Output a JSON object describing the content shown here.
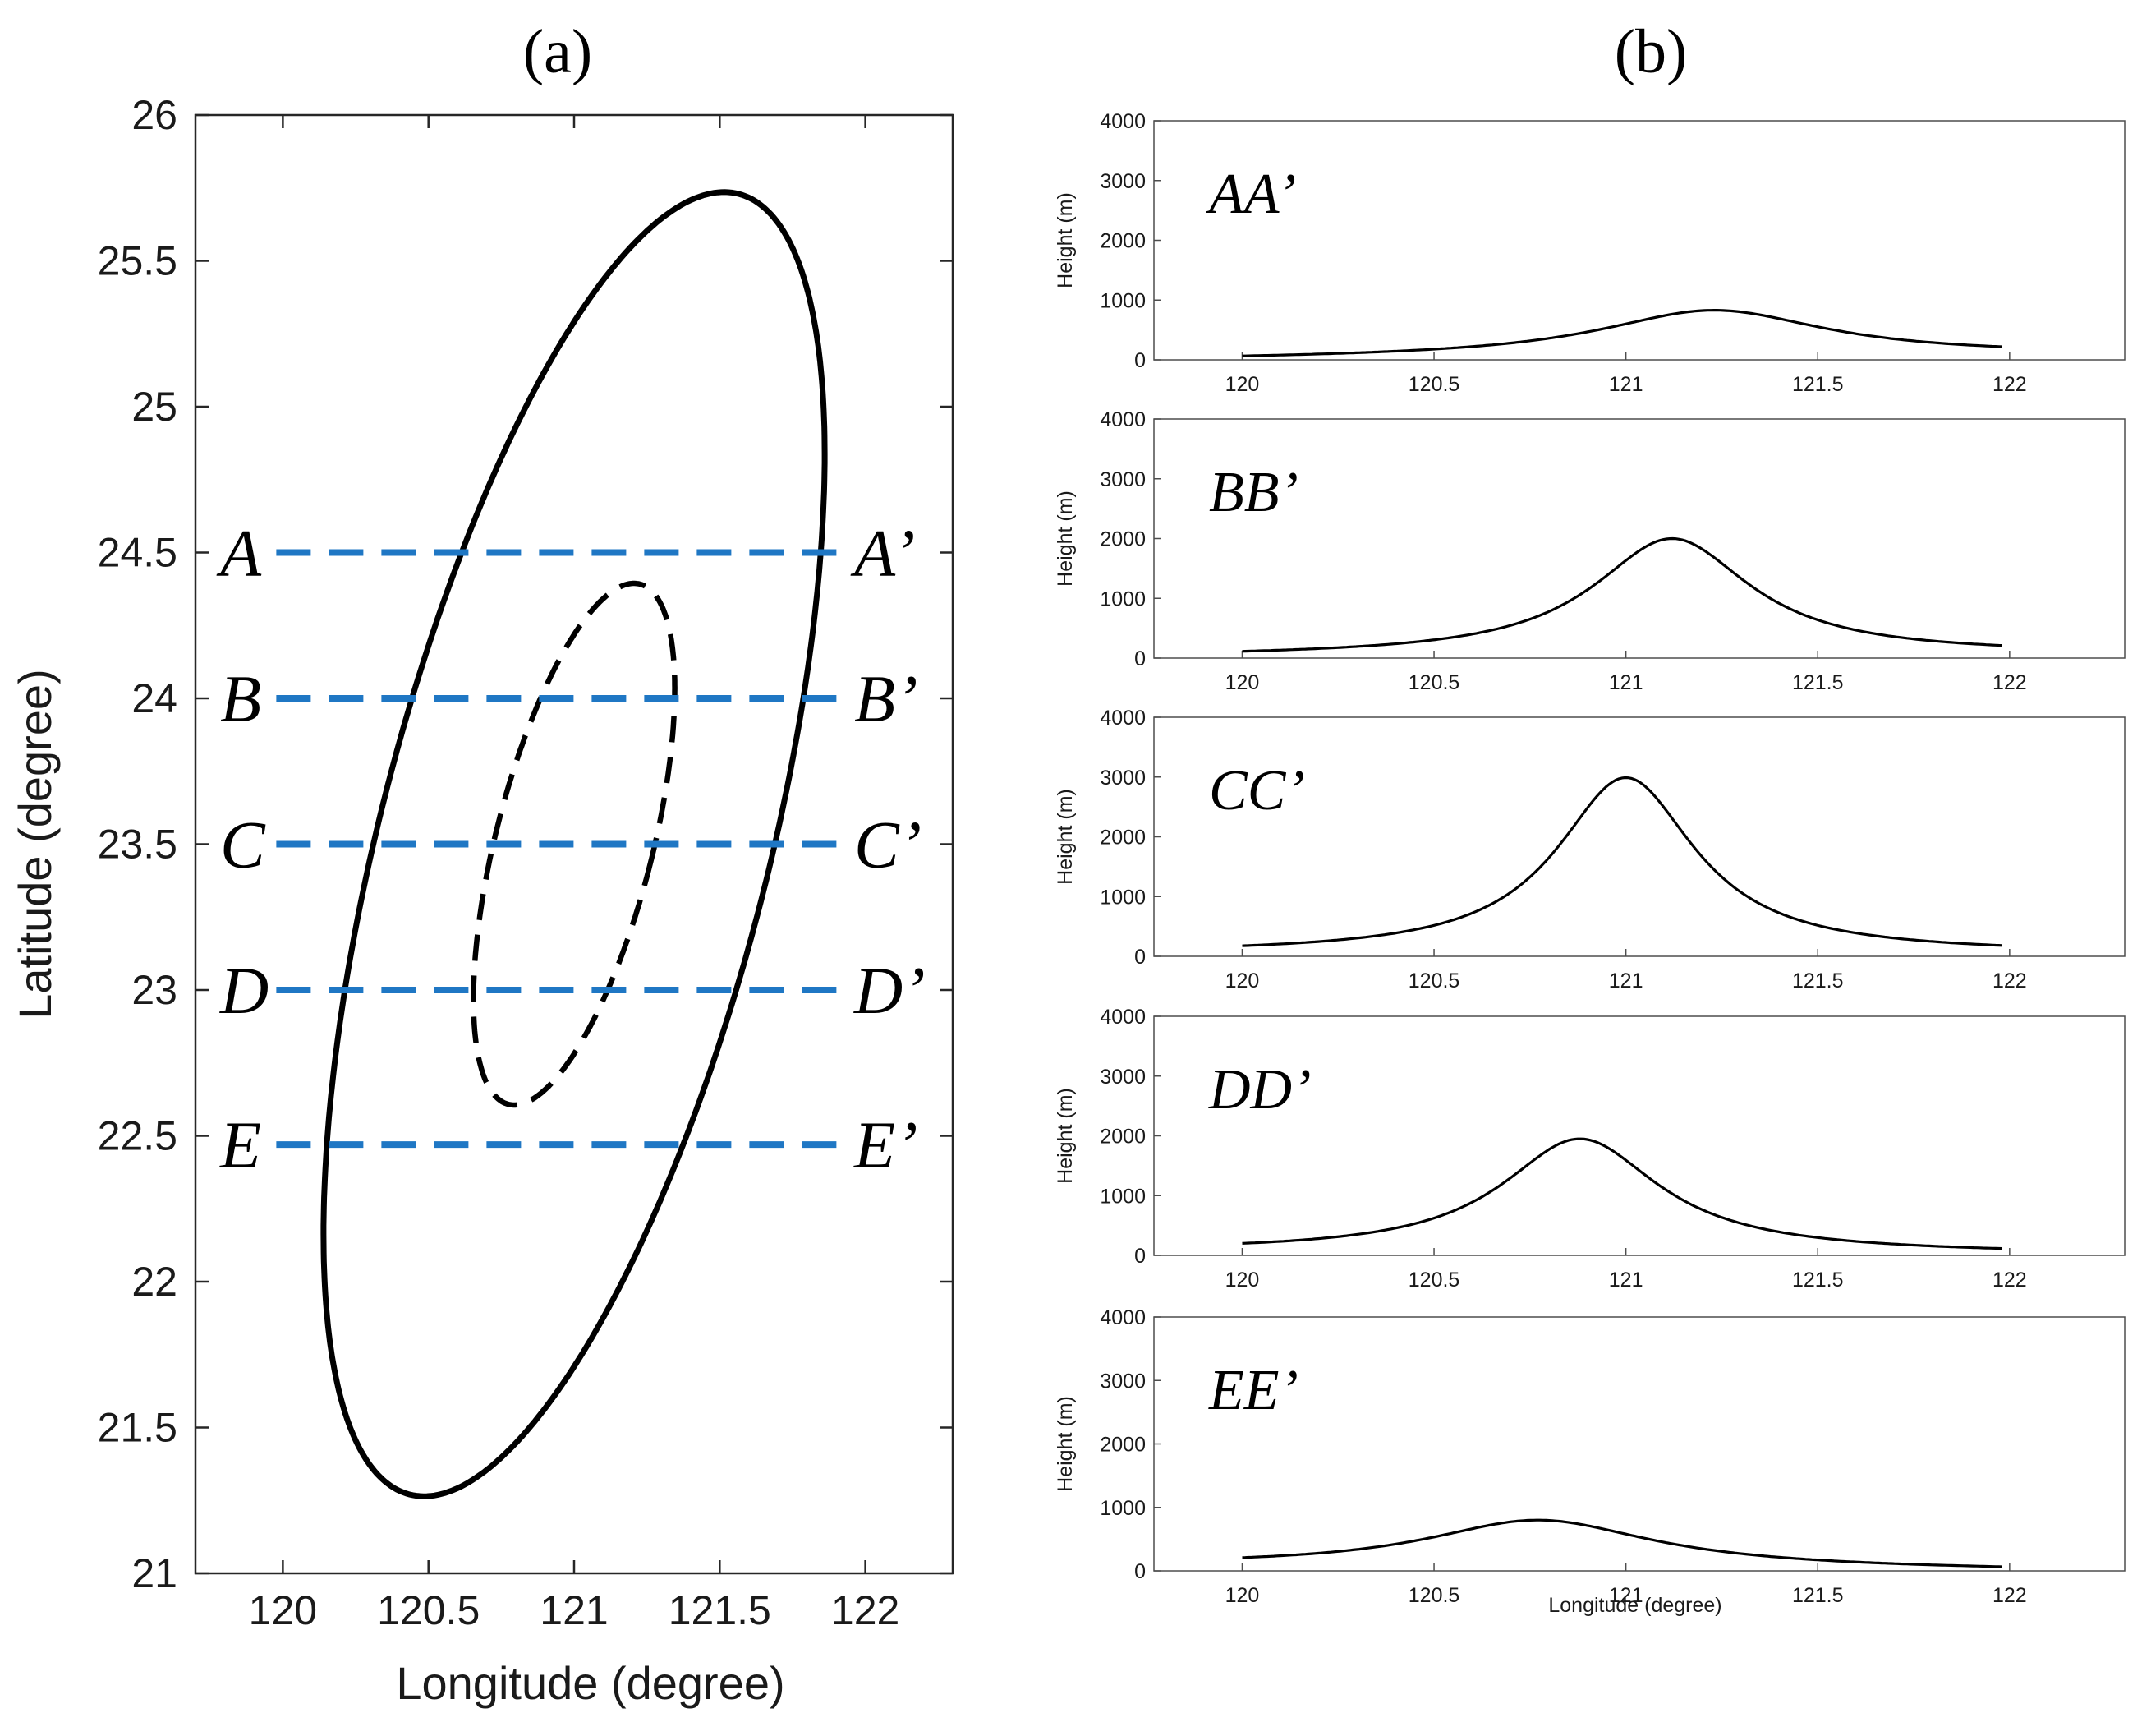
{
  "chart_data": [
    {
      "type": "line",
      "panel_label": "(a)",
      "title": "",
      "xlabel": "Longitude (degree)",
      "ylabel": "Latitude (degree)",
      "xlim": [
        119.7,
        122.3
      ],
      "ylim": [
        21,
        26
      ],
      "xticks": [
        120,
        120.5,
        121,
        121.5,
        122
      ],
      "xtick_labels": [
        "120",
        "120.5",
        "121",
        "121.5",
        "122"
      ],
      "yticks": [
        21,
        21.5,
        22,
        22.5,
        23,
        23.5,
        24,
        24.5,
        25,
        25.5,
        26
      ],
      "ytick_labels": [
        "21",
        "21.5",
        "22",
        "22.5",
        "23",
        "23.5",
        "24",
        "24.5",
        "25",
        "25.5",
        "26"
      ],
      "grid": false,
      "outer_ellipse": {
        "style": "solid",
        "color": "#000000",
        "center": [
          121.0,
          23.5
        ],
        "semi_major_deg": 2.3,
        "semi_minor_deg": 0.67,
        "tilt_from_north_deg": 14.2
      },
      "inner_ellipse": {
        "style": "dashed",
        "color": "#000000",
        "center": [
          121.0,
          23.5
        ],
        "semi_major_deg": 0.92,
        "semi_minor_deg": 0.27,
        "tilt_from_north_deg": 14.2
      },
      "sections": [
        {
          "start": "A",
          "end": "A’",
          "lat": 24.5,
          "lon_from": 120.0,
          "lon_to": 121.95
        },
        {
          "start": "B",
          "end": "B’",
          "lat": 24.0,
          "lon_from": 120.0,
          "lon_to": 121.95
        },
        {
          "start": "C",
          "end": "C’",
          "lat": 23.5,
          "lon_from": 120.0,
          "lon_to": 121.95
        },
        {
          "start": "D",
          "end": "D’",
          "lat": 23.0,
          "lon_from": 120.0,
          "lon_to": 121.95
        },
        {
          "start": "E",
          "end": "E’",
          "lat": 22.47,
          "lon_from": 120.0,
          "lon_to": 121.95
        }
      ],
      "section_color": "#1f77c4"
    },
    {
      "type": "line",
      "panel_label": "(b)",
      "xlabel": "Longitude (degree)",
      "ylabel": "Height (m)",
      "xlim": [
        119.77,
        122.3
      ],
      "ylim": [
        0,
        4000
      ],
      "xticks": [
        120,
        120.5,
        121,
        121.5,
        122
      ],
      "xtick_labels": [
        "120",
        "120.5",
        "121",
        "121.5",
        "122"
      ],
      "yticks": [
        0,
        1000,
        2000,
        3000,
        4000
      ],
      "ytick_labels": [
        "0",
        "1000",
        "2000",
        "3000",
        "4000"
      ],
      "grid": false,
      "color": "#000000",
      "profiles": [
        {
          "name": "AA’",
          "x_range": [
            120.0,
            121.98
          ],
          "peak_lon": 121.23,
          "peak_height": 830,
          "half_width_deg": 0.36,
          "tail_height_west": 0,
          "tail_height_east": 80
        },
        {
          "name": "BB’",
          "x_range": [
            120.0,
            121.98
          ],
          "peak_lon": 121.12,
          "peak_height": 2000,
          "half_width_deg": 0.25,
          "tail_height_west": 20,
          "tail_height_east": 60
        },
        {
          "name": "CC’",
          "x_range": [
            120.0,
            121.98
          ],
          "peak_lon": 121.0,
          "peak_height": 2990,
          "half_width_deg": 0.22,
          "tail_height_west": 40,
          "tail_height_east": 40
        },
        {
          "name": "DD’",
          "x_range": [
            120.0,
            121.98
          ],
          "peak_lon": 120.88,
          "peak_height": 1950,
          "half_width_deg": 0.25,
          "tail_height_west": 60,
          "tail_height_east": 20
        },
        {
          "name": "EE’",
          "x_range": [
            120.0,
            121.98
          ],
          "peak_lon": 120.77,
          "peak_height": 800,
          "half_width_deg": 0.36,
          "tail_height_west": 80,
          "tail_height_east": 0
        }
      ]
    }
  ]
}
